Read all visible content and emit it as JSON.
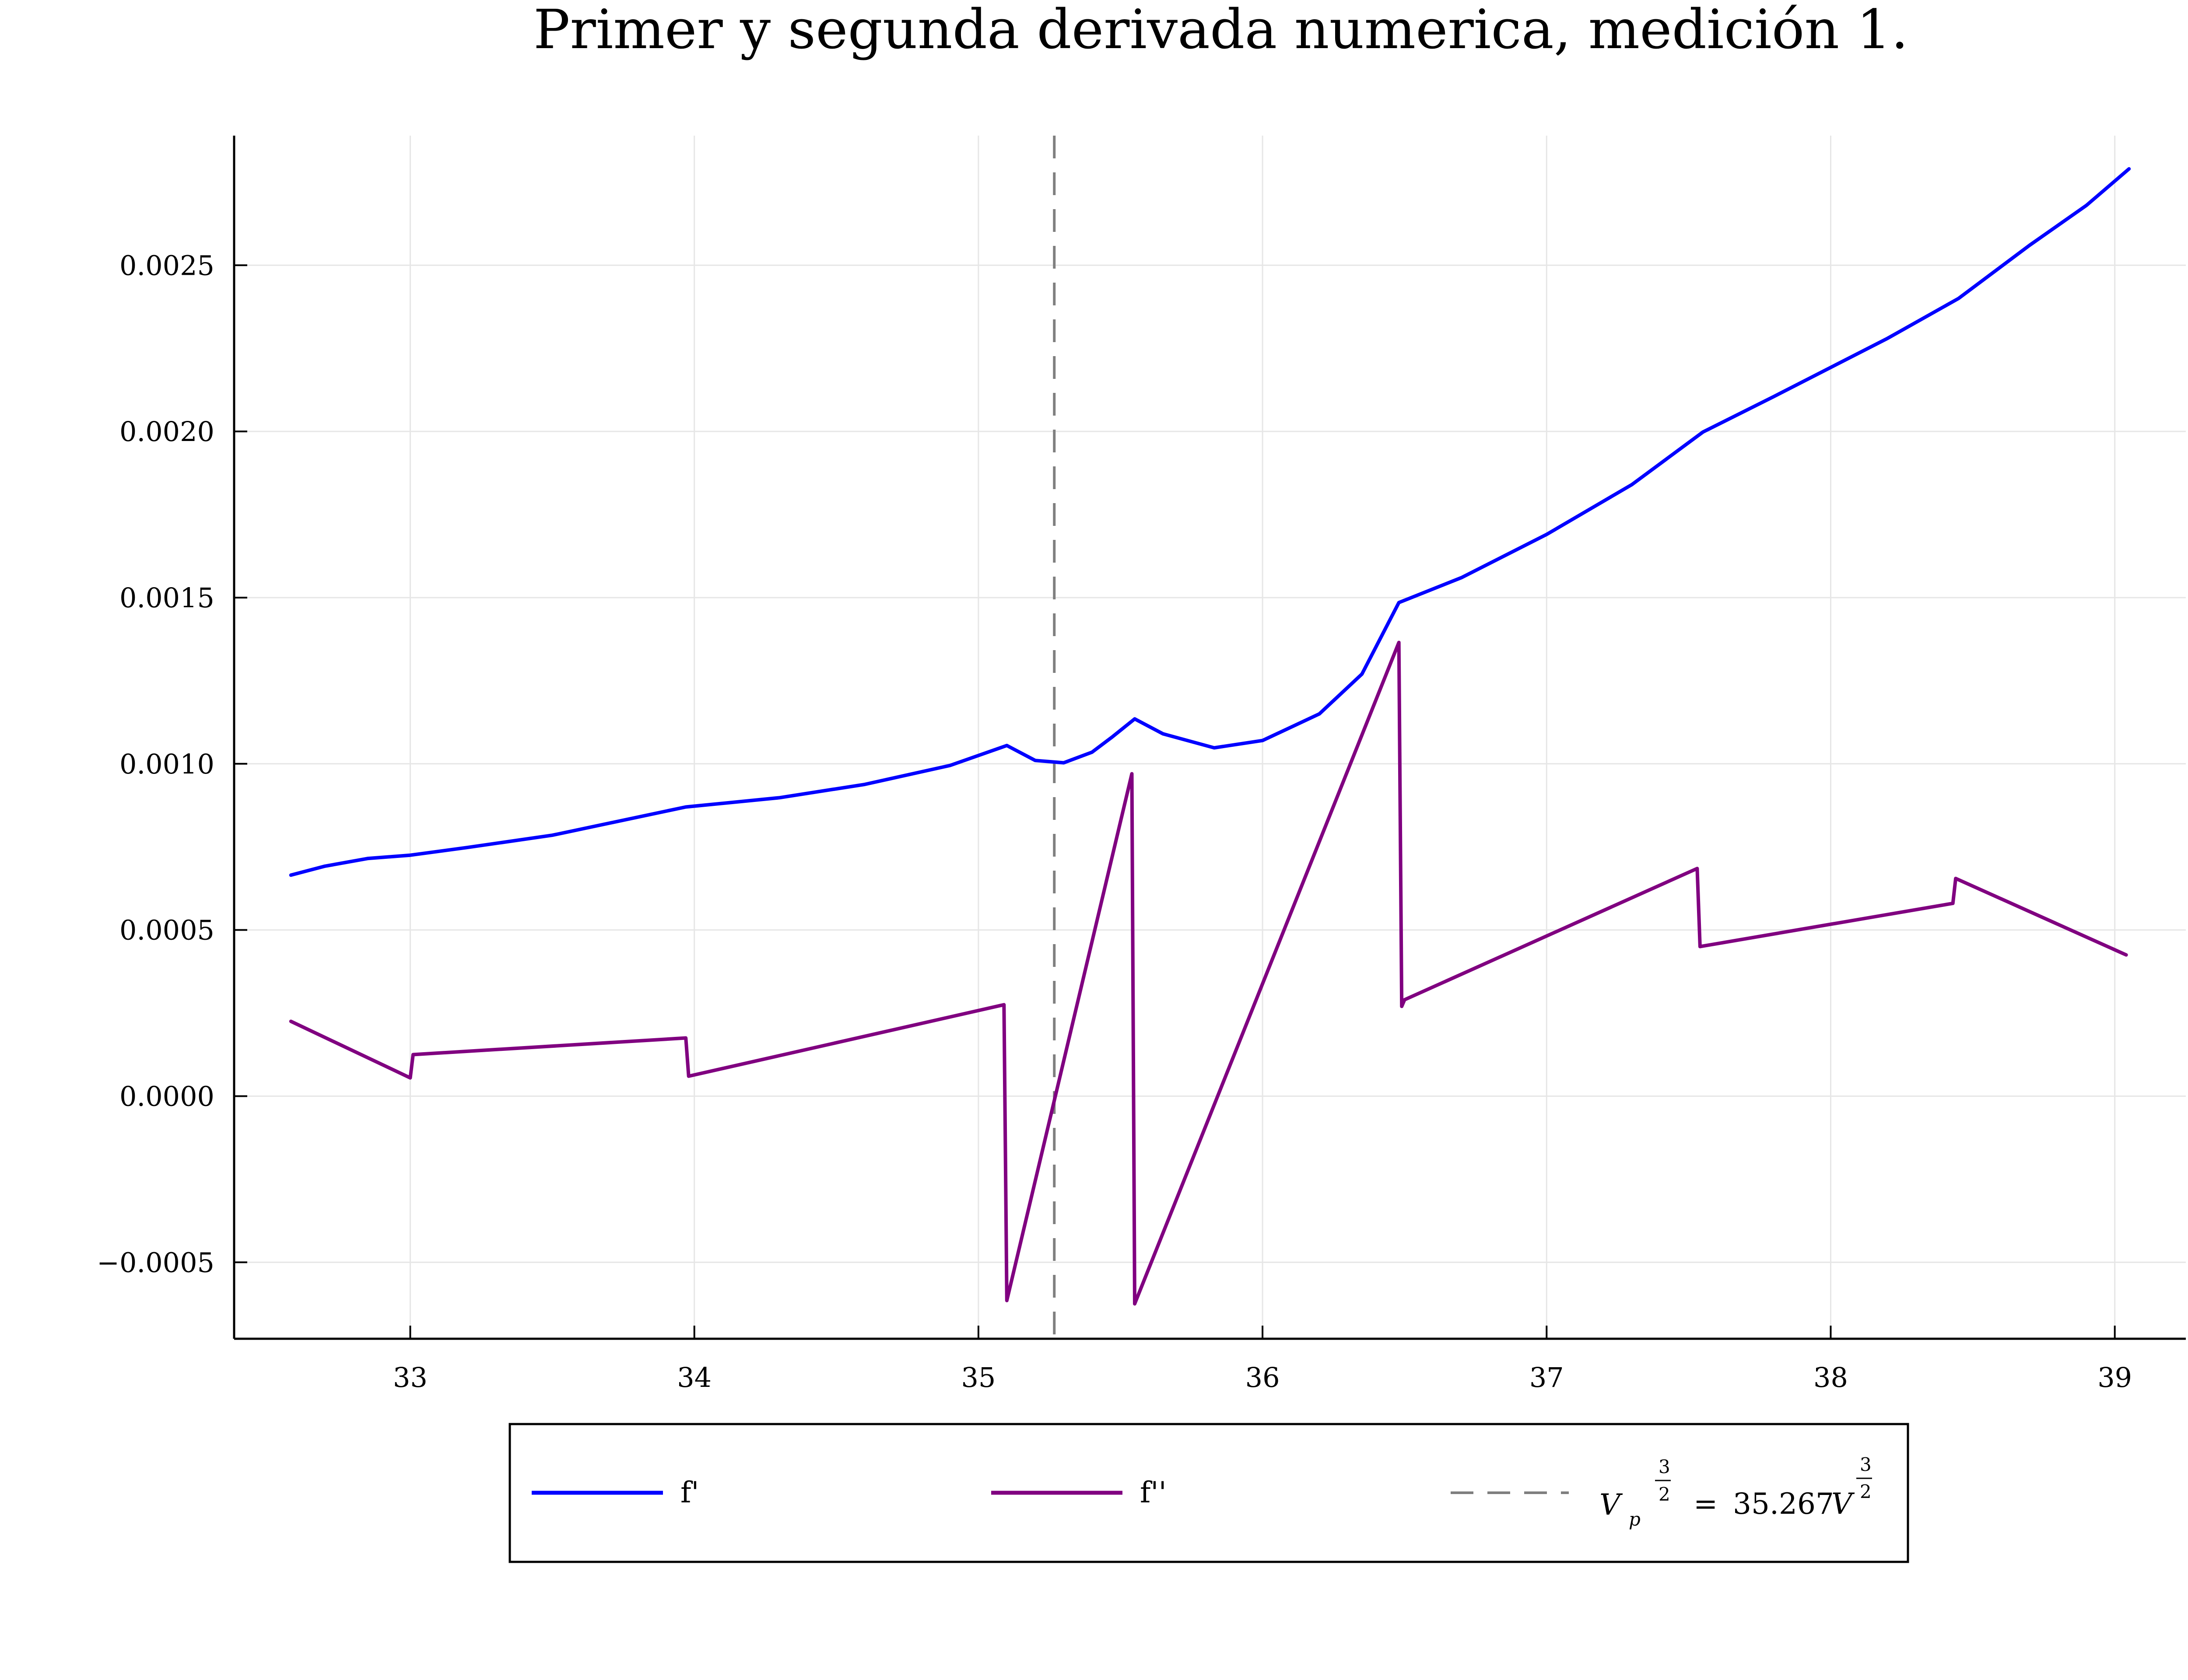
{
  "chart_data": {
    "type": "line",
    "title": "Primer y segunda derivada numerica, medición 1.",
    "xlabel": "",
    "ylabel": "",
    "xlim": [
      32.38,
      39.25
    ],
    "ylim": [
      -0.00073,
      0.00289
    ],
    "grid": true,
    "legend_position": "bottom",
    "x_ticks": [
      33,
      34,
      35,
      36,
      37,
      38,
      39
    ],
    "x_tick_labels": [
      "33",
      "34",
      "35",
      "36",
      "37",
      "38",
      "39"
    ],
    "y_ticks": [
      -0.0005,
      0.0,
      0.0005,
      0.001,
      0.0015,
      0.002,
      0.0025
    ],
    "y_tick_labels": [
      "−0.0005",
      "0.0000",
      "0.0005",
      "0.0010",
      "0.0015",
      "0.0020",
      "0.0025"
    ],
    "series": [
      {
        "name": "f'",
        "color": "#0000ff",
        "points": [
          [
            32.58,
            0.000665
          ],
          [
            32.7,
            0.000692
          ],
          [
            32.85,
            0.000715
          ],
          [
            33.0,
            0.000725
          ],
          [
            33.2,
            0.000748
          ],
          [
            33.5,
            0.000785
          ],
          [
            33.97,
            0.00087
          ],
          [
            34.3,
            0.000898
          ],
          [
            34.6,
            0.000938
          ],
          [
            34.9,
            0.000995
          ],
          [
            35.1,
            0.001055
          ],
          [
            35.2,
            0.00101
          ],
          [
            35.3,
            0.001003
          ],
          [
            35.4,
            0.001035
          ],
          [
            35.47,
            0.00108
          ],
          [
            35.55,
            0.001135
          ],
          [
            35.65,
            0.00109
          ],
          [
            35.83,
            0.001048
          ],
          [
            36.0,
            0.00107
          ],
          [
            36.2,
            0.00115
          ],
          [
            36.35,
            0.00127
          ],
          [
            36.48,
            0.001485
          ],
          [
            36.7,
            0.00156
          ],
          [
            37.0,
            0.00169
          ],
          [
            37.3,
            0.00184
          ],
          [
            37.55,
            0.001998
          ],
          [
            37.8,
            0.002105
          ],
          [
            38.2,
            0.00228
          ],
          [
            38.45,
            0.0024
          ],
          [
            38.7,
            0.00256
          ],
          [
            38.9,
            0.00268
          ],
          [
            39.05,
            0.00279
          ]
        ]
      },
      {
        "name": "f''",
        "color": "#800080",
        "points": [
          [
            32.58,
            0.000225
          ],
          [
            33.0,
            5.5e-05
          ],
          [
            33.01,
            0.000125
          ],
          [
            33.97,
            0.000175
          ],
          [
            33.98,
            6e-05
          ],
          [
            35.09,
            0.000275
          ],
          [
            35.1,
            -0.000615
          ],
          [
            35.54,
            0.00097
          ],
          [
            35.55,
            -0.000625
          ],
          [
            36.48,
            0.001365
          ],
          [
            36.49,
            0.00027
          ],
          [
            36.5,
            0.00029
          ],
          [
            37.53,
            0.000685
          ],
          [
            37.54,
            0.00045
          ],
          [
            38.43,
            0.00058
          ],
          [
            38.44,
            0.000655
          ],
          [
            39.04,
            0.000425
          ]
        ]
      }
    ],
    "vline": {
      "x": 35.267,
      "color": "#7f7f7f",
      "style": "dashed",
      "legend_parts": {
        "v": "V",
        "sub": "p",
        "frac_num": "3",
        "frac_den": "2",
        "eq": "=",
        "value": "35.267",
        "unit": "V",
        "unit_num": "3",
        "unit_den": "2"
      }
    }
  }
}
